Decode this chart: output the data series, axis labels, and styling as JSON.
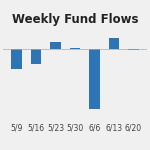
{
  "title": "Weekly Fund Flows",
  "categories": [
    "5/9",
    "5/16",
    "5/23",
    "5/30",
    "6/6",
    "6/13",
    "6/20"
  ],
  "values": [
    -1.8,
    -1.4,
    0.6,
    0.05,
    -5.5,
    1.0,
    -0.1
  ],
  "bar_color": "#2e75b6",
  "background_color": "#f0f0f0",
  "title_fontsize": 8.5,
  "tick_fontsize": 5.5
}
